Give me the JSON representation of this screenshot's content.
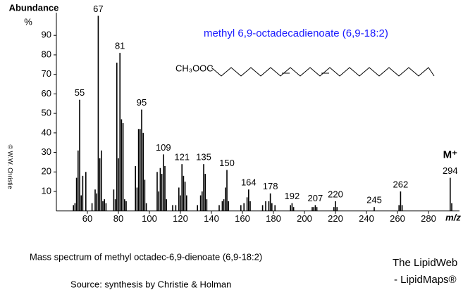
{
  "chart_data": {
    "type": "stick",
    "title": "methyl 6,9-octadecadienoate (6,9-18:2)",
    "y_label": "Abundance",
    "y_unit": "%",
    "x_label": "m/z",
    "copyright": "© W.W. Christie",
    "structure_label": "CH₃OOC",
    "molecular_ion_label": "M⁺",
    "caption": "Mass spectrum of methyl octadec-6,9-dienoate (6,9-18:2)",
    "source": "Source:  synthesis by Christie & Holman",
    "brand": "The LipidWeb",
    "brand_sub": "- LipidMaps®",
    "color": "#000000",
    "xlim": [
      40,
      300
    ],
    "ylim": [
      0,
      100
    ],
    "xticks": [
      60,
      80,
      100,
      120,
      140,
      160,
      180,
      200,
      220,
      240,
      260,
      280
    ],
    "yticks": [
      10,
      20,
      30,
      40,
      50,
      60,
      70,
      80,
      90
    ],
    "x": [
      51,
      52,
      53,
      54,
      55,
      56,
      57,
      59,
      63,
      65,
      66,
      67,
      68,
      69,
      70,
      71,
      72,
      77,
      78,
      79,
      80,
      81,
      82,
      83,
      84,
      85,
      91,
      92,
      93,
      94,
      95,
      96,
      97,
      98,
      105,
      106,
      107,
      108,
      109,
      110,
      111,
      115,
      117,
      119,
      120,
      121,
      122,
      123,
      124,
      131,
      133,
      134,
      135,
      136,
      137,
      145,
      147,
      148,
      149,
      150,
      151,
      159,
      161,
      163,
      164,
      165,
      173,
      175,
      177,
      178,
      179,
      181,
      191,
      192,
      193,
      205,
      206,
      207,
      208,
      219,
      220,
      221,
      245,
      261,
      262,
      263,
      294,
      295
    ],
    "values": [
      3,
      4,
      17,
      31,
      57,
      8,
      18,
      20,
      4,
      11,
      9,
      100,
      27,
      31,
      5,
      6,
      4,
      11,
      6,
      76,
      27,
      81,
      47,
      45,
      6,
      5,
      23,
      12,
      42,
      42,
      52,
      40,
      16,
      4,
      20,
      10,
      22,
      19,
      29,
      23,
      6,
      3,
      3,
      12,
      8,
      24,
      18,
      15,
      8,
      3,
      8,
      10,
      24,
      19,
      6,
      3,
      5,
      6,
      12,
      21,
      5,
      3,
      4,
      7,
      11,
      5,
      3,
      5,
      5,
      9,
      4,
      3,
      3,
      4,
      2,
      2,
      2,
      3,
      2,
      2,
      5,
      2,
      2,
      3,
      10,
      3,
      17,
      4
    ],
    "peak_labels": [
      55,
      67,
      81,
      95,
      109,
      121,
      135,
      150,
      164,
      178,
      192,
      207,
      220,
      245,
      262,
      294
    ]
  }
}
